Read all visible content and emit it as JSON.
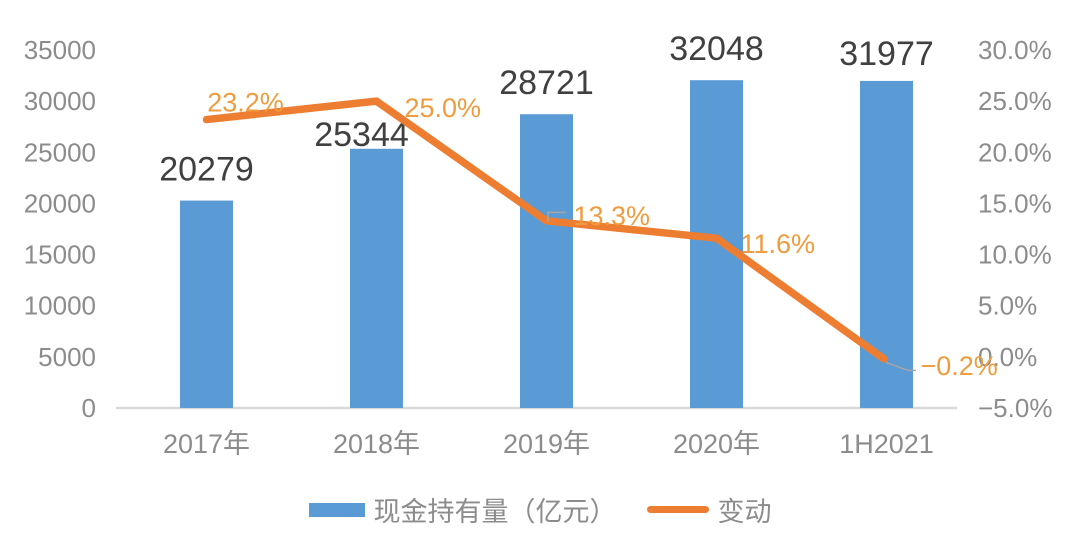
{
  "chart_data": {
    "type": "combo",
    "title": "",
    "categories": [
      "2017年",
      "2018年",
      "2019年",
      "2020年",
      "1H2021"
    ],
    "series": [
      {
        "name": "现金持有量（亿元）",
        "kind": "bar",
        "axis": "left",
        "color": "#5B9BD5",
        "label_color": "#404040",
        "values": [
          20279,
          25344,
          28721,
          32048,
          31977
        ],
        "labels": [
          "20279",
          "25344",
          "28721",
          "32048",
          "31977"
        ]
      },
      {
        "name": "变动",
        "kind": "line",
        "axis": "right",
        "color": "#ED7D31",
        "label_color": "#EF9C3E",
        "values": [
          23.2,
          25.0,
          13.3,
          11.6,
          -0.2
        ],
        "labels": [
          "23.2%",
          "25.0%",
          "13.3%",
          "11.6%",
          "−0.2%"
        ]
      }
    ],
    "left_axis": {
      "min": 0,
      "max": 35000,
      "tick_labels": [
        "35000",
        "30000",
        "25000",
        "20000",
        "15000",
        "10000",
        "5000",
        "0"
      ]
    },
    "right_axis": {
      "min": -5,
      "max": 30,
      "tick_labels": [
        "30.0%",
        "25.0%",
        "20.0%",
        "15.0%",
        "10.0%",
        "5.0%",
        "0.0%",
        "−5.0%"
      ]
    },
    "grid": false,
    "legend_position": "bottom",
    "axis_text_color": "#8C8C8C",
    "axis_line_color": "#D9D9D9",
    "leader_line_color": "#A6A6A6",
    "background": "#FFFFFF"
  }
}
